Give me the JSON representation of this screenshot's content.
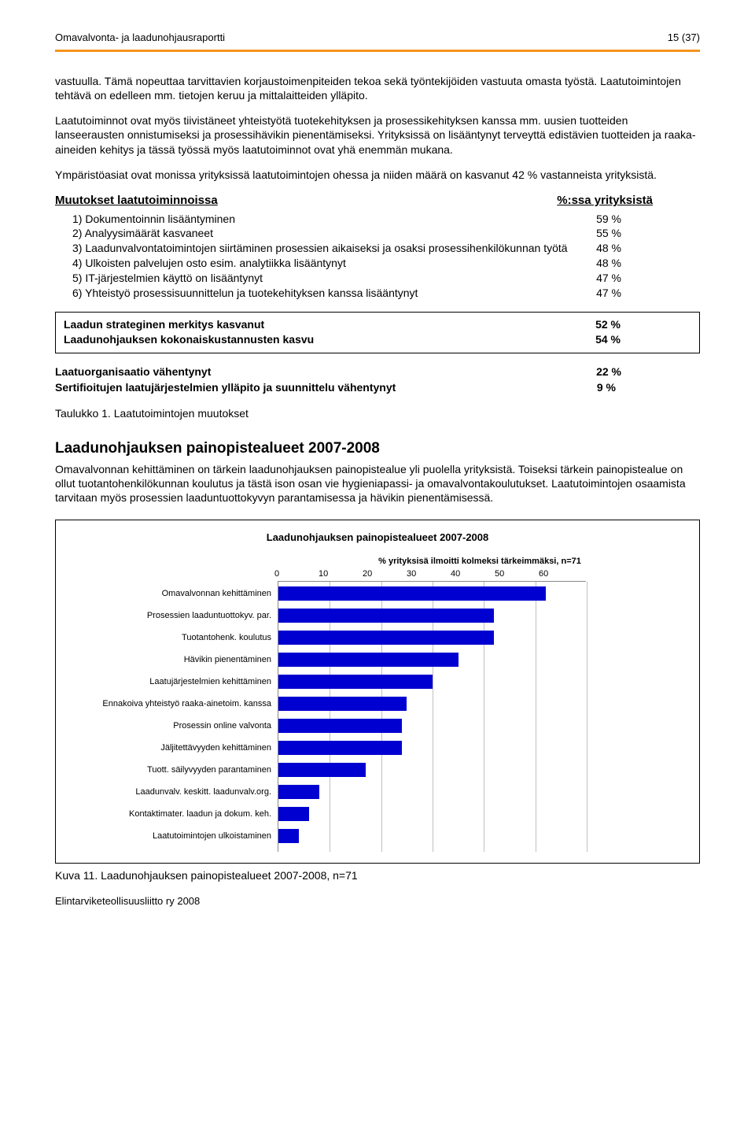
{
  "header": {
    "left": "Omavalvonta- ja laadunohjausraportti",
    "right": "15 (37)"
  },
  "paragraphs": {
    "p1": "vastuulla. Tämä nopeuttaa tarvittavien korjaustoimenpiteiden tekoa sekä työntekijöiden vastuuta omasta työstä. Laatutoimintojen tehtävä on edelleen mm. tietojen keruu ja mittalaitteiden ylläpito.",
    "p2": "Laatutoiminnot ovat myös tiivistäneet yhteistyötä tuotekehityksen ja prosessikehityksen kanssa mm. uusien tuotteiden lanseerausten onnistumiseksi ja prosessihävikin pienentämiseksi. Yrityksissä on lisääntynyt terveyttä edistävien tuotteiden ja raaka-aineiden kehitys ja tässä työssä myös laatutoiminnot ovat yhä enemmän mukana.",
    "p3": "Ympäristöasiat ovat monissa yrityksissä laatutoimintojen ohessa ja niiden määrä on kasvanut 42 % vastanneista yrityksistä."
  },
  "muutokset": {
    "title": "Muutokset laatutoiminnoissa",
    "col_title": "%:ssa yrityksistä",
    "items": [
      {
        "n": "1)",
        "label": "Dokumentoinnin lisääntyminen",
        "val": "59 %"
      },
      {
        "n": "2)",
        "label": "Analyysimäärät kasvaneet",
        "val": "55 %"
      },
      {
        "n": "3)",
        "label": "Laadunvalvontatoimintojen siirtäminen prosessien aikaiseksi ja osaksi prosessihenkilökunnan työtä",
        "val": "48 %"
      },
      {
        "n": "4)",
        "label": "Ulkoisten palvelujen osto esim. analytiikka lisääntynyt",
        "val": "48 %"
      },
      {
        "n": "5)",
        "label": "IT-järjestelmien käyttö on lisääntynyt",
        "val": "47 %"
      },
      {
        "n": "6)",
        "label": "Yhteistyö prosessisuunnittelun ja tuotekehityksen kanssa lisääntynyt",
        "val": "47 %"
      }
    ]
  },
  "box": {
    "r1_label": "Laadun strateginen merkitys kasvanut",
    "r1_val": "52 %",
    "r2_label": "Laadunohjauksen kokonaiskustannusten kasvu",
    "r2_val": "54 %"
  },
  "bold_rows": {
    "r1_label": "Laatuorganisaatio vähentynyt",
    "r1_val": "22 %",
    "r2_label": "Sertifioitujen laatujärjestelmien ylläpito ja suunnittelu vähentynyt",
    "r2_val": "9 %"
  },
  "taulukko_caption": "Taulukko 1. Laatutoimintojen muutokset",
  "section2": {
    "title": "Laadunohjauksen painopistealueet 2007-2008",
    "body": "Omavalvonnan kehittäminen on tärkein laadunohjauksen painopistealue yli puolella yrityksistä. Toiseksi tärkein painopistealue on ollut tuotantohenkilökunnan koulutus ja tästä ison osan vie hygieniapassi- ja omavalvontakoulutukset. Laatutoimintojen osaamista tarvitaan myös prosessien laaduntuottokyvyn parantamisessa ja hävikin pienentämisessä."
  },
  "chart": {
    "title": "Laadunohjauksen painopistealueet 2007-2008",
    "axis_title": "% yrityksisä ilmoitti kolmeksi tärkeimmäksi, n=71",
    "xmax": 60,
    "xticks": [
      "0",
      "10",
      "20",
      "30",
      "40",
      "50",
      "60"
    ],
    "bar_color": "#0000d0",
    "grid_color": "#c0c0c0",
    "background": "#ffffff",
    "categories": [
      {
        "label": "Omavalvonnan kehittäminen",
        "value": 52
      },
      {
        "label": "Prosessien laaduntuottokyv. par.",
        "value": 42
      },
      {
        "label": "Tuotantohenk. koulutus",
        "value": 42
      },
      {
        "label": "Hävikin pienentäminen",
        "value": 35
      },
      {
        "label": "Laatujärjestelmien kehittäminen",
        "value": 30
      },
      {
        "label": "Ennakoiva yhteistyö raaka-ainetoim. kanssa",
        "value": 25
      },
      {
        "label": "Prosessin online valvonta",
        "value": 24
      },
      {
        "label": "Jäljitettävyyden kehittäminen",
        "value": 24
      },
      {
        "label": "Tuott. säilyvyyden parantaminen",
        "value": 17
      },
      {
        "label": "Laadunvalv. keskitt. laadunvalv.org.",
        "value": 8
      },
      {
        "label": "Kontaktimater. laadun  ja dokum. keh.",
        "value": 6
      },
      {
        "label": "Laatutoimintojen ulkoistaminen",
        "value": 4
      }
    ]
  },
  "kuva_caption": "Kuva 11. Laadunohjauksen painopistealueet 2007-2008, n=71",
  "footer": "Elintarviketeollisuusliitto ry 2008"
}
